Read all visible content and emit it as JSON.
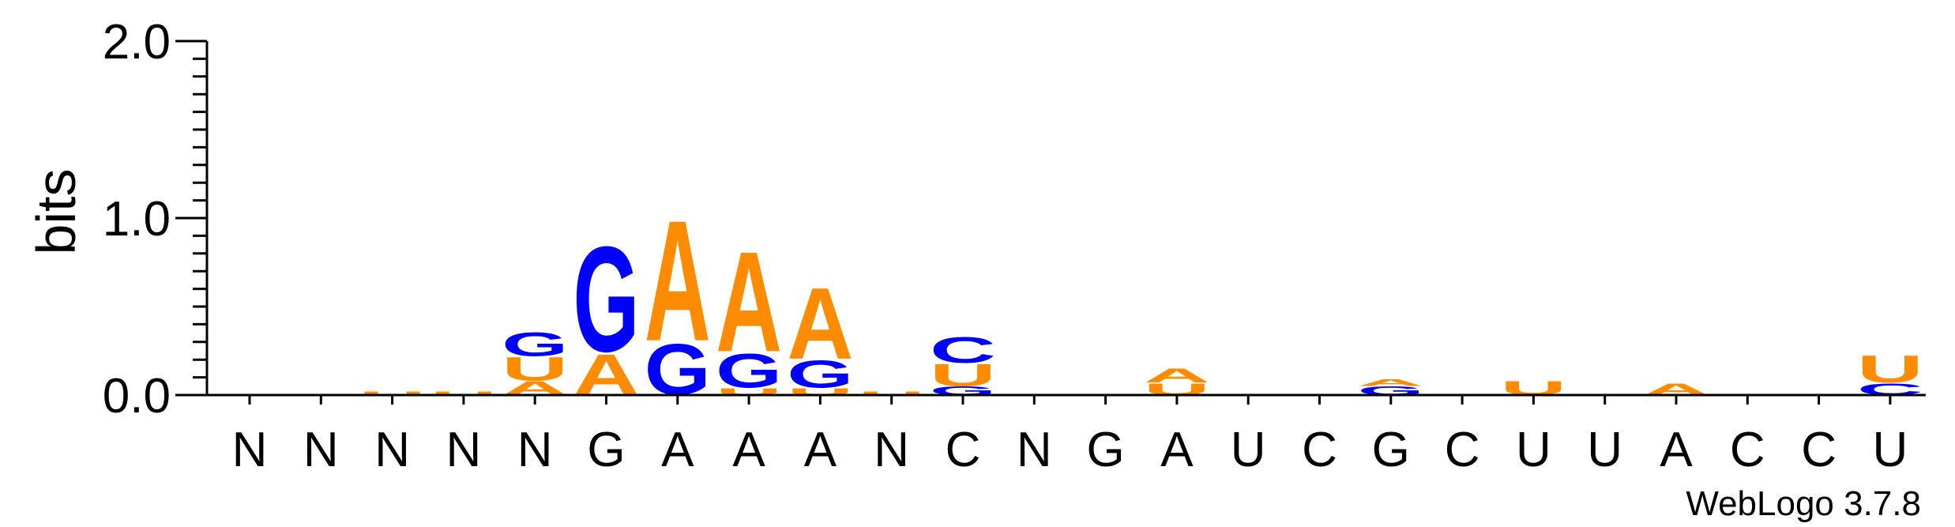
{
  "chart_data": {
    "type": "sequence-logo",
    "ylabel": "bits",
    "ylim": [
      0,
      2.0
    ],
    "yticks": [
      "0.0",
      "1.0",
      "2.0"
    ],
    "colors": {
      "A": "#ff8c00",
      "U": "#ff8c00",
      "G": "#0000ff",
      "C": "#0000ff"
    },
    "positions": [
      "N",
      "N",
      "N",
      "N",
      "N",
      "G",
      "A",
      "A",
      "A",
      "N",
      "C",
      "N",
      "G",
      "A",
      "U",
      "C",
      "G",
      "C",
      "U",
      "U",
      "A",
      "C",
      "C",
      "U"
    ],
    "stacks": [
      [],
      [],
      [
        {
          "l": "U",
          "v": 0.02
        }
      ],
      [
        {
          "l": "U",
          "v": 0.02
        }
      ],
      [
        {
          "l": "A",
          "v": 0.08
        },
        {
          "l": "U",
          "v": 0.14
        },
        {
          "l": "G",
          "v": 0.14
        }
      ],
      [
        {
          "l": "A",
          "v": 0.24
        },
        {
          "l": "G",
          "v": 0.62
        }
      ],
      [
        {
          "l": "G",
          "v": 0.3
        },
        {
          "l": "A",
          "v": 0.71
        }
      ],
      [
        {
          "l": "U",
          "v": 0.04
        },
        {
          "l": "G",
          "v": 0.2
        },
        {
          "l": "A",
          "v": 0.59
        }
      ],
      [
        {
          "l": "U",
          "v": 0.04
        },
        {
          "l": "G",
          "v": 0.16
        },
        {
          "l": "A",
          "v": 0.42
        }
      ],
      [
        {
          "l": "U",
          "v": 0.02
        }
      ],
      [
        {
          "l": "G",
          "v": 0.05
        },
        {
          "l": "U",
          "v": 0.13
        },
        {
          "l": "C",
          "v": 0.15
        }
      ],
      [],
      [],
      [
        {
          "l": "U",
          "v": 0.07
        },
        {
          "l": "A",
          "v": 0.08
        }
      ],
      [],
      [],
      [
        {
          "l": "G",
          "v": 0.05
        },
        {
          "l": "A",
          "v": 0.04
        }
      ],
      [],
      [
        {
          "l": "U",
          "v": 0.08
        }
      ],
      [],
      [
        {
          "l": "A",
          "v": 0.07
        }
      ],
      [],
      [],
      [
        {
          "l": "C",
          "v": 0.07
        },
        {
          "l": "U",
          "v": 0.16
        }
      ]
    ]
  },
  "credit": "WebLogo 3.7.8"
}
